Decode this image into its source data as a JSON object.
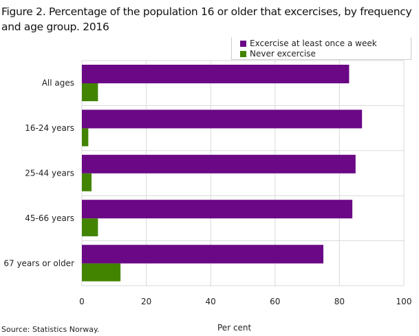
{
  "chart_data": {
    "type": "bar",
    "orientation": "horizontal",
    "title": "Figure 2. Percentage of the population 16 or older that excercises, by frequency and age group. 2016",
    "categories": [
      "All ages",
      "16-24 years",
      "25-44 years",
      "45-66 years",
      "67 years or older"
    ],
    "series": [
      {
        "name": "Excercise at least once a week",
        "color": "#6a0885",
        "values": [
          83,
          87,
          85,
          84,
          75
        ]
      },
      {
        "name": "Never excercise",
        "color": "#428400",
        "values": [
          5,
          2,
          3,
          5,
          12
        ]
      }
    ],
    "xlabel": "Per cent",
    "ylabel": "",
    "xlim": [
      0,
      100
    ],
    "xticks": [
      "0",
      "20",
      "40",
      "60",
      "80",
      "100"
    ],
    "grid": true,
    "legend_position": "top-right",
    "source": "Source: Statistics Norway."
  }
}
